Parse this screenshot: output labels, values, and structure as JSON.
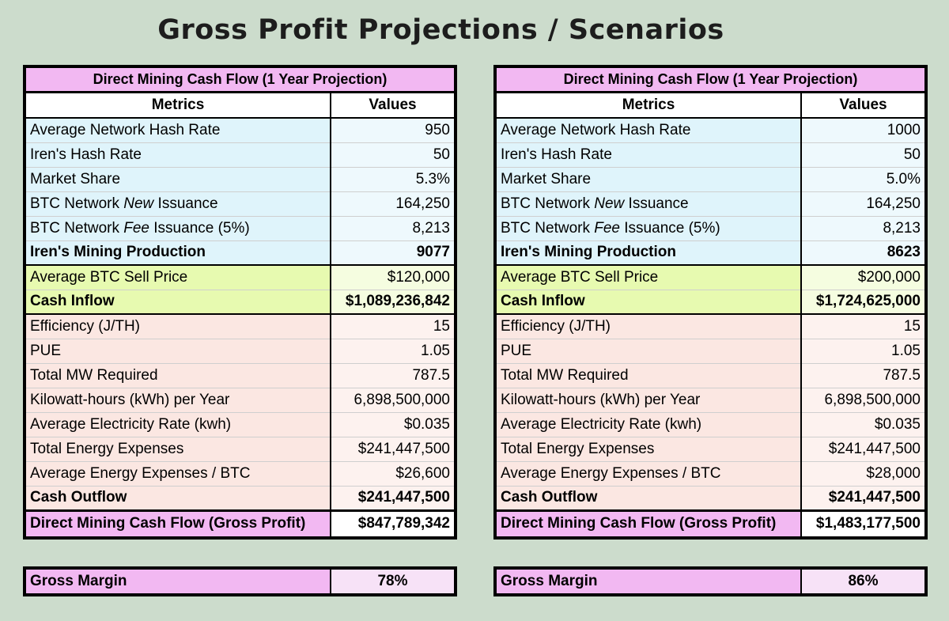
{
  "title": "Gross Profit Projections / Scenarios",
  "scenarios": [
    {
      "table_title": "Direct Mining Cash Flow (1 Year Projection)",
      "col_metrics": "Metrics",
      "col_values": "Values",
      "rows": [
        {
          "metric": "Average Network Hash Rate",
          "value": "950"
        },
        {
          "metric": "Iren's Hash Rate",
          "value": "50"
        },
        {
          "metric": "Market Share",
          "value": "5.3%"
        },
        {
          "metric_pre": "BTC Network ",
          "metric_em": "New",
          "metric_post": " Issuance",
          "value": "164,250"
        },
        {
          "metric_pre": "BTC Network ",
          "metric_em": "Fee",
          "metric_post": " Issuance (5%)",
          "value": "8,213"
        },
        {
          "metric": "Iren's Mining Production",
          "value": "9077"
        },
        {
          "metric": "Average BTC Sell Price",
          "value": "$120,000"
        },
        {
          "metric": "Cash Inflow",
          "value": "$1,089,236,842"
        },
        {
          "metric": "Efficiency (J/TH)",
          "value": "15"
        },
        {
          "metric": "PUE",
          "value": "1.05"
        },
        {
          "metric": "Total MW Required",
          "value": "787.5"
        },
        {
          "metric": "Kilowatt-hours (kWh) per Year",
          "value": "6,898,500,000"
        },
        {
          "metric": "Average Electricity Rate (kwh)",
          "value": "$0.035"
        },
        {
          "metric": "Total Energy Expenses",
          "value": "$241,447,500"
        },
        {
          "metric": "Average Energy Expenses / BTC",
          "value": "$26,600"
        },
        {
          "metric": "Cash Outflow",
          "value": "$241,447,500"
        },
        {
          "metric": "Direct Mining Cash Flow (Gross Profit)",
          "value": "$847,789,342"
        }
      ],
      "gross_margin_label": "Gross Margin",
      "gross_margin_value": "78%"
    },
    {
      "table_title": "Direct Mining Cash Flow (1 Year Projection)",
      "col_metrics": "Metrics",
      "col_values": "Values",
      "rows": [
        {
          "metric": "Average Network Hash Rate",
          "value": "1000"
        },
        {
          "metric": "Iren's Hash Rate",
          "value": "50"
        },
        {
          "metric": "Market Share",
          "value": "5.0%"
        },
        {
          "metric_pre": "BTC Network ",
          "metric_em": "New",
          "metric_post": " Issuance",
          "value": "164,250"
        },
        {
          "metric_pre": "BTC Network ",
          "metric_em": "Fee",
          "metric_post": " Issuance (5%)",
          "value": "8,213"
        },
        {
          "metric": "Iren's Mining Production",
          "value": "8623"
        },
        {
          "metric": "Average BTC Sell Price",
          "value": "$200,000"
        },
        {
          "metric": "Cash Inflow",
          "value": "$1,724,625,000"
        },
        {
          "metric": "Efficiency (J/TH)",
          "value": "15"
        },
        {
          "metric": "PUE",
          "value": "1.05"
        },
        {
          "metric": "Total MW Required",
          "value": "787.5"
        },
        {
          "metric": "Kilowatt-hours (kWh) per Year",
          "value": "6,898,500,000"
        },
        {
          "metric": "Average Electricity Rate (kwh)",
          "value": "$0.035"
        },
        {
          "metric": "Total Energy Expenses",
          "value": "$241,447,500"
        },
        {
          "metric": "Average Energy Expenses / BTC",
          "value": "$28,000"
        },
        {
          "metric": "Cash Outflow",
          "value": "$241,447,500"
        },
        {
          "metric": "Direct Mining Cash Flow (Gross Profit)",
          "value": "$1,483,177,500"
        }
      ],
      "gross_margin_label": "Gross Margin",
      "gross_margin_value": "86%"
    }
  ]
}
